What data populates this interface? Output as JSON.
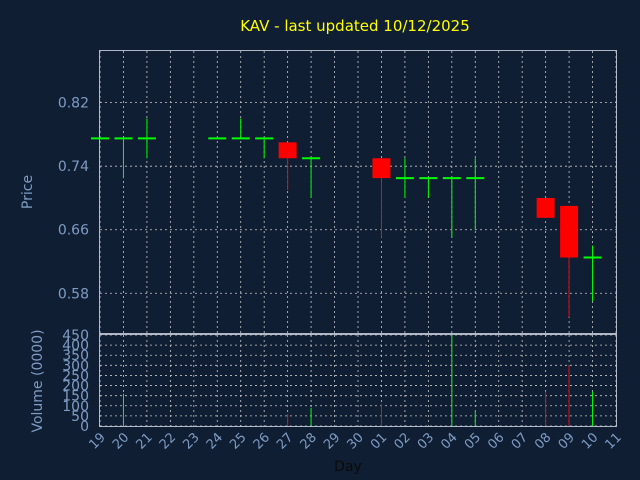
{
  "chart_data": {
    "type": "candlestick",
    "title": "KAV - last updated 10/12/2025",
    "price_panel": {
      "ylabel": "Price",
      "yticks": [
        "0.82",
        "0.74",
        "0.66",
        "0.58"
      ],
      "ylim": [
        0.53,
        0.885
      ]
    },
    "volume_panel": {
      "ylabel": "Volume (0000)",
      "yticks": [
        "450",
        "400",
        "350",
        "300",
        "250",
        "200",
        "150",
        "100",
        "50",
        "0"
      ],
      "ylim": [
        0,
        450
      ]
    },
    "xlabel": "Day",
    "x_tick_labels": [
      "19",
      "20",
      "21",
      "22",
      "23",
      "24",
      "25",
      "26",
      "27",
      "28",
      "29",
      "30",
      "01",
      "02",
      "03",
      "04",
      "05",
      "06",
      "07",
      "08",
      "09",
      "10",
      "11"
    ],
    "up_color": "#00ff00",
    "down_color": "#ff0000",
    "candles": [
      {
        "x": "19",
        "open": 0.775,
        "high": 0.775,
        "low": 0.775,
        "close": 0.775,
        "volume": 0
      },
      {
        "x": "20",
        "open": 0.775,
        "high": 0.775,
        "low": 0.725,
        "close": 0.775,
        "volume": 160
      },
      {
        "x": "21",
        "open": 0.775,
        "high": 0.8,
        "low": 0.75,
        "close": 0.775,
        "volume": 0
      },
      {
        "x": "24",
        "open": 0.775,
        "high": 0.775,
        "low": 0.775,
        "close": 0.775,
        "volume": 0
      },
      {
        "x": "25",
        "open": 0.775,
        "high": 0.8,
        "low": 0.775,
        "close": 0.775,
        "volume": 0
      },
      {
        "x": "26",
        "open": 0.775,
        "high": 0.775,
        "low": 0.75,
        "close": 0.775,
        "volume": 0
      },
      {
        "x": "27",
        "open": 0.77,
        "high": 0.77,
        "low": 0.71,
        "close": 0.75,
        "volume": 60
      },
      {
        "x": "28",
        "open": 0.75,
        "high": 0.75,
        "low": 0.7,
        "close": 0.75,
        "volume": 90
      },
      {
        "x": "01",
        "open": 0.75,
        "high": 0.75,
        "low": 0.65,
        "close": 0.725,
        "volume": 110
      },
      {
        "x": "02",
        "open": 0.725,
        "high": 0.75,
        "low": 0.7,
        "close": 0.725,
        "volume": 0
      },
      {
        "x": "03",
        "open": 0.725,
        "high": 0.725,
        "low": 0.7,
        "close": 0.725,
        "volume": 0
      },
      {
        "x": "04",
        "open": 0.725,
        "high": 0.725,
        "low": 0.65,
        "close": 0.725,
        "volume": 450
      },
      {
        "x": "05",
        "open": 0.725,
        "high": 0.75,
        "low": 0.66,
        "close": 0.725,
        "volume": 70
      },
      {
        "x": "08",
        "open": 0.7,
        "high": 0.7,
        "low": 0.675,
        "close": 0.675,
        "volume": 170
      },
      {
        "x": "09",
        "open": 0.69,
        "high": 0.69,
        "low": 0.55,
        "close": 0.625,
        "volume": 300
      },
      {
        "x": "10",
        "open": 0.625,
        "high": 0.64,
        "low": 0.57,
        "close": 0.625,
        "volume": 170
      }
    ]
  }
}
